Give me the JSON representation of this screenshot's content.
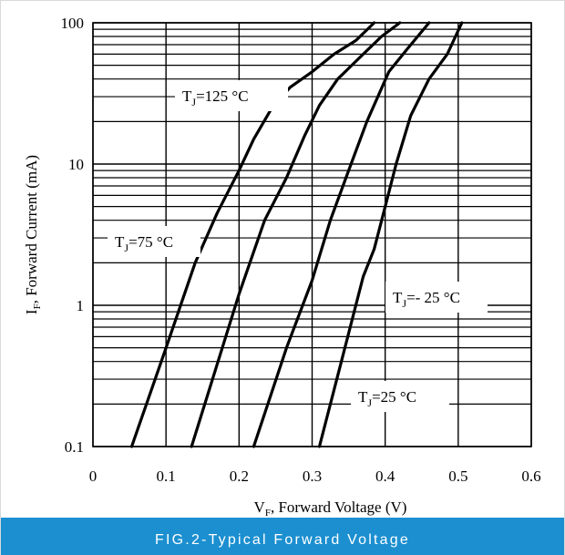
{
  "chart_data": {
    "type": "line",
    "x_scale": "linear",
    "y_scale": "log",
    "xlim": [
      0,
      0.6
    ],
    "ylim": [
      0.1,
      100
    ],
    "x_ticks": [
      "0",
      "0.1",
      "0.2",
      "0.3",
      "0.4",
      "0.5",
      "0.6"
    ],
    "y_ticks": [
      "0.1",
      "1",
      "10",
      "100"
    ],
    "xlabel": {
      "symbol": "V",
      "sub": "F",
      "text": ", Forward Voltage (V)"
    },
    "ylabel": {
      "symbol": "I",
      "sub": "F",
      "text": ", Forward Current (mA)"
    },
    "grid": true,
    "series": [
      {
        "name": "TJ=125 °C",
        "label": {
          "pre": "T",
          "sub": "J",
          "post": "=125 °C"
        },
        "points": [
          [
            0.053,
            0.1
          ],
          [
            0.1,
            0.5
          ],
          [
            0.14,
            2
          ],
          [
            0.17,
            4.5
          ],
          [
            0.2,
            9
          ],
          [
            0.22,
            15
          ],
          [
            0.245,
            25
          ],
          [
            0.27,
            35
          ],
          [
            0.3,
            45
          ],
          [
            0.33,
            60
          ],
          [
            0.36,
            75
          ],
          [
            0.385,
            100
          ]
        ]
      },
      {
        "name": "TJ=75 °C",
        "label": {
          "pre": "T",
          "sub": "J",
          "post": "=75 °C"
        },
        "points": [
          [
            0.135,
            0.1
          ],
          [
            0.2,
            1.2
          ],
          [
            0.235,
            4
          ],
          [
            0.265,
            8
          ],
          [
            0.29,
            16
          ],
          [
            0.31,
            26
          ],
          [
            0.335,
            40
          ],
          [
            0.37,
            60
          ],
          [
            0.395,
            80
          ],
          [
            0.42,
            100
          ]
        ]
      },
      {
        "name": "TJ=- 25 °C",
        "label": {
          "pre": "T",
          "sub": "J",
          "post": "=- 25 °C"
        },
        "points": [
          [
            0.22,
            0.1
          ],
          [
            0.265,
            0.5
          ],
          [
            0.3,
            1.5
          ],
          [
            0.325,
            4
          ],
          [
            0.35,
            9
          ],
          [
            0.375,
            20
          ],
          [
            0.405,
            45
          ],
          [
            0.43,
            65
          ],
          [
            0.46,
            100
          ]
        ]
      },
      {
        "name": "TJ=25 °C",
        "label": {
          "pre": "T",
          "sub": "J",
          "post": "=25 °C"
        },
        "points": [
          [
            0.31,
            0.1
          ],
          [
            0.34,
            0.4
          ],
          [
            0.37,
            1.6
          ],
          [
            0.385,
            2.5
          ],
          [
            0.4,
            5
          ],
          [
            0.415,
            10
          ],
          [
            0.435,
            22
          ],
          [
            0.46,
            40
          ],
          [
            0.485,
            60
          ],
          [
            0.505,
            100
          ]
        ]
      }
    ]
  },
  "caption": "FIG.2-Typical Forward Voltage"
}
